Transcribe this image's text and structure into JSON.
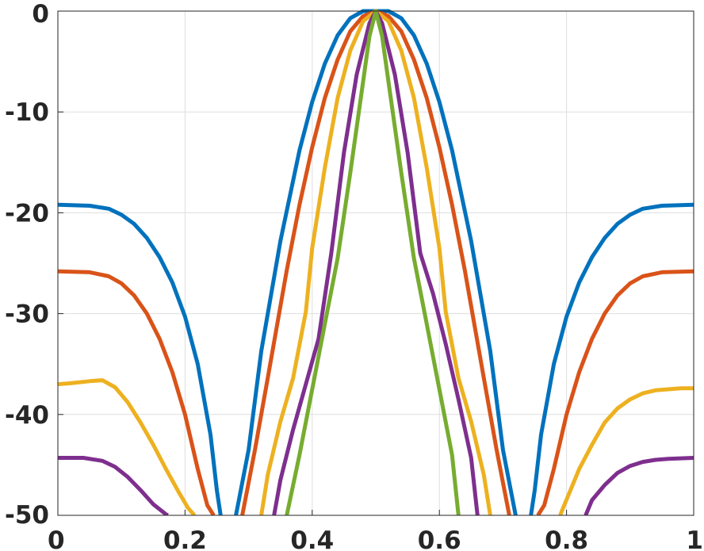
{
  "chart_data": {
    "type": "line",
    "title": "",
    "xlabel": "",
    "ylabel": "",
    "xlim": [
      0,
      1
    ],
    "ylim": [
      -50,
      0
    ],
    "grid": true,
    "legend": "none",
    "x_ticks": [
      "0",
      "0.2",
      "0.4",
      "0.6",
      "0.8",
      "1"
    ],
    "y_ticks": [
      "0",
      "-10",
      "-20",
      "-30",
      "-40",
      "-50"
    ],
    "series": [
      {
        "color": "#0072bd",
        "x": [
          0,
          0.05,
          0.08,
          0.1,
          0.12,
          0.14,
          0.16,
          0.18,
          0.2,
          0.22,
          0.24,
          0.25,
          0.256,
          0.28,
          0.3,
          0.32,
          0.35,
          0.38,
          0.4,
          0.42,
          0.44,
          0.46,
          0.48,
          0.5,
          0.52,
          0.54,
          0.56,
          0.58,
          0.6,
          0.62,
          0.65,
          0.68,
          0.7,
          0.72,
          0.744,
          0.75,
          0.76,
          0.78,
          0.8,
          0.82,
          0.84,
          0.86,
          0.88,
          0.9,
          0.92,
          0.95,
          1.0
        ],
        "y": [
          -19.2,
          -19.3,
          -19.6,
          -20.2,
          -21.1,
          -22.5,
          -24.4,
          -26.9,
          -30.3,
          -35.0,
          -42.0,
          -47.5,
          -50,
          -50,
          -43.5,
          -33.7,
          -22.8,
          -13.8,
          -9.0,
          -5.2,
          -2.4,
          -0.7,
          0.0,
          0.0,
          0.0,
          -0.7,
          -2.4,
          -5.2,
          -9.0,
          -13.8,
          -22.8,
          -33.7,
          -43.5,
          -50,
          -50,
          -47.5,
          -42.0,
          -35.0,
          -30.3,
          -26.9,
          -24.4,
          -22.5,
          -21.1,
          -20.2,
          -19.6,
          -19.3,
          -19.2
        ]
      },
      {
        "color": "#d95319",
        "x": [
          0,
          0.05,
          0.08,
          0.1,
          0.12,
          0.14,
          0.16,
          0.18,
          0.2,
          0.22,
          0.235,
          0.245,
          0.25,
          0.29,
          0.31,
          0.33,
          0.36,
          0.38,
          0.4,
          0.42,
          0.44,
          0.46,
          0.48,
          0.5,
          0.52,
          0.54,
          0.56,
          0.58,
          0.6,
          0.62,
          0.64,
          0.67,
          0.69,
          0.71,
          0.75,
          0.755,
          0.765,
          0.78,
          0.8,
          0.82,
          0.84,
          0.86,
          0.88,
          0.9,
          0.92,
          0.95,
          1.0
        ],
        "y": [
          -25.8,
          -25.9,
          -26.3,
          -27.0,
          -28.2,
          -30.0,
          -32.5,
          -35.8,
          -40.0,
          -45.4,
          -49.0,
          -50,
          -50,
          -50,
          -43.5,
          -36.4,
          -25.7,
          -19.2,
          -13.5,
          -8.6,
          -4.8,
          -2.0,
          -0.5,
          0.0,
          -0.5,
          -2.0,
          -4.8,
          -8.6,
          -13.5,
          -19.2,
          -25.7,
          -36.4,
          -43.5,
          -50,
          -50,
          -50,
          -49.0,
          -45.4,
          -40.0,
          -35.8,
          -32.5,
          -30.0,
          -28.2,
          -27.0,
          -26.3,
          -25.9,
          -25.8
        ]
      },
      {
        "color": "#edb120",
        "x": [
          0,
          0.02,
          0.05,
          0.07,
          0.09,
          0.11,
          0.13,
          0.15,
          0.17,
          0.19,
          0.205,
          0.215,
          0.32,
          0.33,
          0.35,
          0.37,
          0.39,
          0.4,
          0.42,
          0.44,
          0.46,
          0.48,
          0.5,
          0.52,
          0.54,
          0.56,
          0.58,
          0.6,
          0.61,
          0.63,
          0.65,
          0.67,
          0.68,
          0.79,
          0.795,
          0.805,
          0.82,
          0.84,
          0.86,
          0.88,
          0.9,
          0.92,
          0.94,
          0.96,
          0.98,
          1.0
        ],
        "y": [
          -37.0,
          -36.9,
          -36.7,
          -36.6,
          -37.3,
          -38.8,
          -40.8,
          -43.0,
          -45.4,
          -47.7,
          -49.3,
          -50,
          -50,
          -46.0,
          -40.7,
          -36.4,
          -29.8,
          -23.5,
          -15.5,
          -8.6,
          -3.9,
          -1.0,
          0.0,
          -1.0,
          -3.9,
          -8.6,
          -15.5,
          -23.5,
          -29.8,
          -36.4,
          -40.7,
          -46.0,
          -50,
          -50,
          -49.2,
          -47.7,
          -45.4,
          -43.0,
          -40.8,
          -39.4,
          -38.5,
          -37.9,
          -37.6,
          -37.5,
          -37.4,
          -37.4
        ]
      },
      {
        "color": "#7e2f8e",
        "x": [
          0,
          0.04,
          0.07,
          0.09,
          0.11,
          0.13,
          0.15,
          0.17,
          0.173,
          0.34,
          0.35,
          0.37,
          0.39,
          0.41,
          0.43,
          0.45,
          0.47,
          0.49,
          0.5,
          0.51,
          0.53,
          0.55,
          0.57,
          0.59,
          0.61,
          0.63,
          0.65,
          0.66,
          0.83,
          0.84,
          0.86,
          0.88,
          0.9,
          0.92,
          0.94,
          0.96,
          1.0
        ],
        "y": [
          -44.3,
          -44.3,
          -44.6,
          -45.2,
          -46.2,
          -47.5,
          -48.9,
          -49.9,
          -50,
          -50,
          -46.5,
          -41.5,
          -37.0,
          -32.5,
          -24.0,
          -14.0,
          -6.3,
          -1.2,
          0.0,
          -1.2,
          -6.3,
          -14.0,
          -24.0,
          -28.0,
          -33.0,
          -38.5,
          -44.3,
          -50,
          -50,
          -48.5,
          -47.0,
          -45.8,
          -45.1,
          -44.7,
          -44.5,
          -44.4,
          -44.3
        ]
      },
      {
        "color": "#77ac30",
        "x": [
          0.36,
          0.38,
          0.4,
          0.42,
          0.44,
          0.46,
          0.48,
          0.49,
          0.5,
          0.51,
          0.52,
          0.54,
          0.56,
          0.58,
          0.6,
          0.62,
          0.63
        ],
        "y": [
          -50,
          -44.0,
          -37.5,
          -31.0,
          -24.5,
          -16.0,
          -7.0,
          -2.5,
          0.0,
          -2.5,
          -7.0,
          -16.0,
          -24.5,
          -31.0,
          -37.5,
          -44.0,
          -50
        ]
      }
    ]
  }
}
